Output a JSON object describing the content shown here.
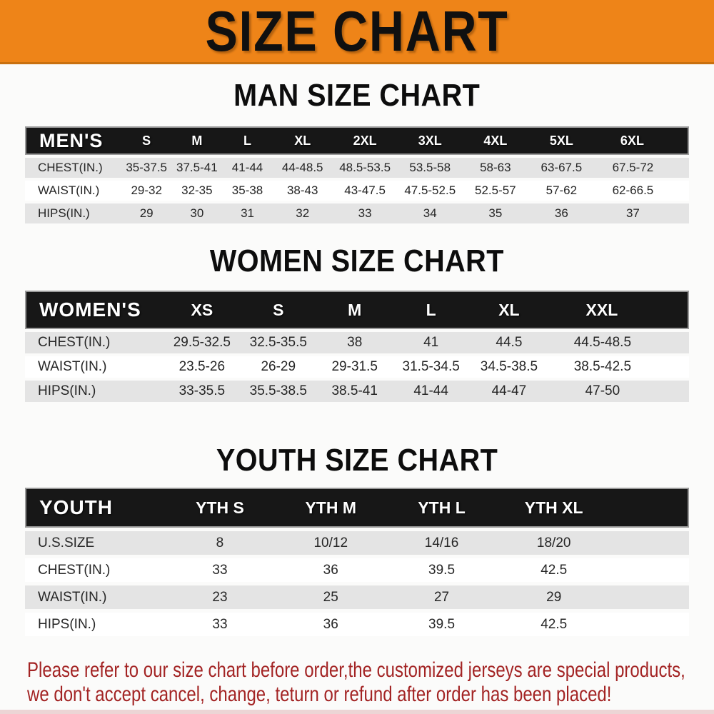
{
  "banner": {
    "title": "SIZE CHART"
  },
  "colors": {
    "banner_orange": "#ee8418",
    "banner_edge": "#c9700f",
    "header_black": "#171717",
    "header_text": "#ffffff",
    "stripe_gray": "#e4e4e4",
    "row_white": "#ffffff",
    "data_text": "#262626",
    "heading_text": "#0d0d0d",
    "disclaimer_red": "#a32424"
  },
  "chart_data": [
    {
      "type": "table",
      "title": "MAN SIZE CHART",
      "header": [
        "MEN'S",
        "S",
        "M",
        "L",
        "XL",
        "2XL",
        "3XL",
        "4XL",
        "5XL",
        "6XL"
      ],
      "rows": [
        [
          "CHEST(IN.)",
          "35-37.5",
          "37.5-41",
          "41-44",
          "44-48.5",
          "48.5-53.5",
          "53.5-58",
          "58-63",
          "63-67.5",
          "67.5-72"
        ],
        [
          "WAIST(IN.)",
          "29-32",
          "32-35",
          "35-38",
          "38-43",
          "43-47.5",
          "47.5-52.5",
          "52.5-57",
          "57-62",
          "62-66.5"
        ],
        [
          "HIPS(IN.)",
          "29",
          "30",
          "31",
          "32",
          "33",
          "34",
          "35",
          "36",
          "37"
        ]
      ],
      "col_widths_pct": [
        14.5,
        7.6,
        7.6,
        7.6,
        9.0,
        9.8,
        9.8,
        9.9,
        10.0,
        14.2
      ]
    },
    {
      "type": "table",
      "title": "WOMEN SIZE CHART",
      "header": [
        "WOMEN'S",
        "XS",
        "S",
        "M",
        "L",
        "XL",
        "XXL"
      ],
      "rows": [
        [
          "CHEST(IN.)",
          "29.5-32.5",
          "32.5-35.5",
          "38",
          "41",
          "44.5",
          "44.5-48.5"
        ],
        [
          "WAIST(IN.)",
          "23.5-26",
          "26-29",
          "29-31.5",
          "31.5-34.5",
          "34.5-38.5",
          "38.5-42.5"
        ],
        [
          "HIPS(IN.)",
          "33-35.5",
          "35.5-38.5",
          "38.5-41",
          "41-44",
          "44-47",
          "47-50"
        ]
      ],
      "col_widths_pct": [
        21.0,
        11.3,
        11.7,
        11.3,
        11.7,
        11.8,
        21.2
      ]
    },
    {
      "type": "table",
      "title": "YOUTH SIZE CHART",
      "header": [
        "YOUTH",
        "YTH S",
        "YTH M",
        "YTH L",
        "YTH XL",
        ""
      ],
      "rows": [
        [
          "U.S.SIZE",
          "8",
          "10/12",
          "14/16",
          "18/20",
          ""
        ],
        [
          "CHEST(IN.)",
          "33",
          "36",
          "39.5",
          "42.5",
          ""
        ],
        [
          "WAIST(IN.)",
          "23",
          "25",
          "27",
          "29",
          ""
        ],
        [
          "HIPS(IN.)",
          "33",
          "36",
          "39.5",
          "42.5",
          ""
        ]
      ],
      "col_widths_pct": [
        21.0,
        16.7,
        16.7,
        16.7,
        17.1,
        11.8
      ]
    }
  ],
  "disclaimer": {
    "lines": [
      "Please refer to our size chart before order,the customized jerseys are special products,",
      "we don't accept cancel, change, teturn or refund after order has been placed!"
    ]
  }
}
